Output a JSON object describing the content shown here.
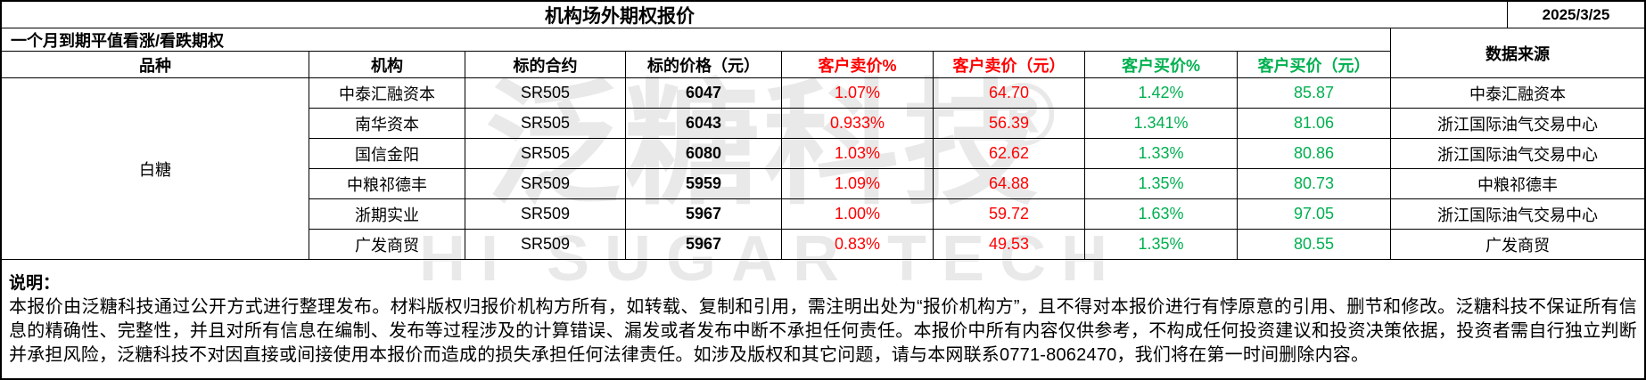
{
  "title": "机构场外期权报价",
  "date": "2025/3/25",
  "subtitle": "一个月到期平值看涨/看跌期权",
  "columns": [
    "品种",
    "机构",
    "标的合约",
    "标的价格（元）",
    "客户卖价%",
    "客户卖价（元）",
    "客户买价%",
    "客户买价（元）",
    "数据来源"
  ],
  "variety": "白糖",
  "rows": [
    {
      "org": "中泰汇融资本",
      "contract": "SR505",
      "price": "6047",
      "sell_pct": "1.07%",
      "sell": "64.70",
      "buy_pct": "1.42%",
      "buy": "85.87",
      "source": "中泰汇融资本"
    },
    {
      "org": "南华资本",
      "contract": "SR505",
      "price": "6043",
      "sell_pct": "0.933%",
      "sell": "56.39",
      "buy_pct": "1.341%",
      "buy": "81.06",
      "source": "浙江国际油气交易中心"
    },
    {
      "org": "国信金阳",
      "contract": "SR505",
      "price": "6080",
      "sell_pct": "1.03%",
      "sell": "62.62",
      "buy_pct": "1.33%",
      "buy": "80.86",
      "source": "浙江国际油气交易中心"
    },
    {
      "org": "中粮祁德丰",
      "contract": "SR509",
      "price": "5959",
      "sell_pct": "1.09%",
      "sell": "64.88",
      "buy_pct": "1.35%",
      "buy": "80.73",
      "source": "中粮祁德丰"
    },
    {
      "org": "浙期实业",
      "contract": "SR509",
      "price": "5967",
      "sell_pct": "1.00%",
      "sell": "59.72",
      "buy_pct": "1.63%",
      "buy": "97.05",
      "source": "浙江国际油气交易中心"
    },
    {
      "org": "广发商贸",
      "contract": "SR509",
      "price": "5967",
      "sell_pct": "0.83%",
      "sell": "49.53",
      "buy_pct": "1.35%",
      "buy": "80.55",
      "source": "广发商贸"
    }
  ],
  "note": {
    "label": "说明：",
    "text": "本报价由泛糖科技通过公开方式进行整理发布。材料版权归报价机构方所有，如转载、复制和引用，需注明出处为“报价机构方”，且不得对本报价进行有悖原意的引用、删节和修改。泛糖科技不保证所有信息的精确性、完整性，并且对所有信息在编制、发布等过程涉及的计算错误、漏发或者发布中断不承担任何责任。本报价中所有内容仅供参考，不构成任何投资建议和投资决策依据，投资者需自行独立判断并承担风险，泛糖科技不对因直接或间接使用本报价而造成的损失承担任何法律责任。如涉及版权和其它问题，请与本网联系0771-8062470，我们将在第一时间删除内容。"
  },
  "watermark": {
    "cn": "泛糖科技",
    "en": "HI SUGAR TECH",
    "registered": "®"
  },
  "colors": {
    "sell": "#FF0000",
    "buy": "#00B050"
  }
}
